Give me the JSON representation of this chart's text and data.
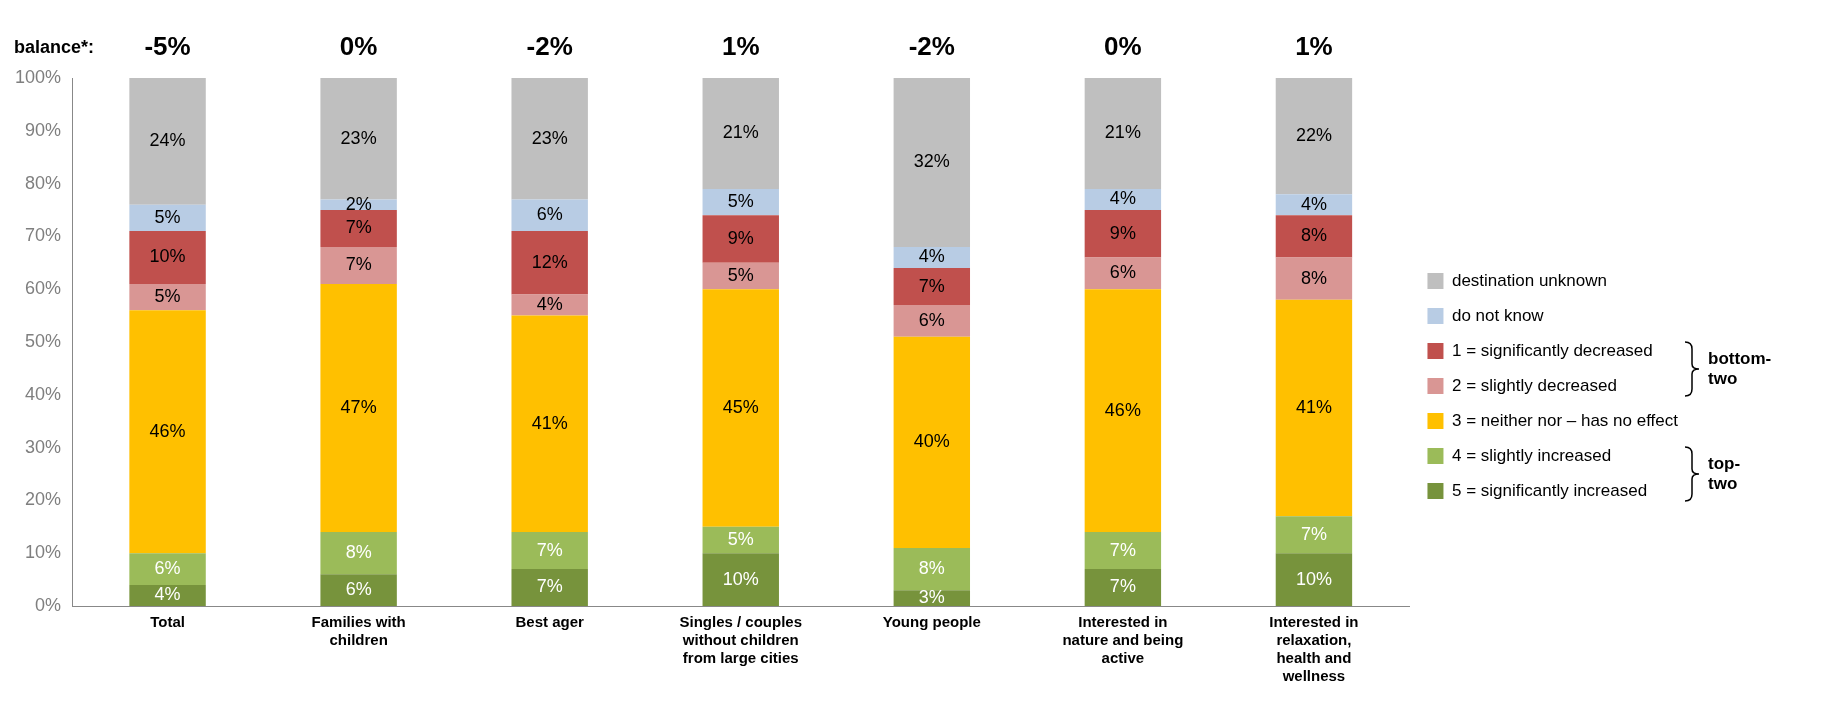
{
  "chart_data": {
    "type": "bar",
    "stacked": true,
    "legend": "right",
    "grid": false,
    "categories": [
      "Total",
      "Families with children",
      "Best ager",
      "Singles / couples without children from large cities",
      "Young people",
      "Interested in nature and being active",
      "Interested in relaxation, health and wellness"
    ],
    "series": [
      {
        "name": "5 = significantly increased",
        "color": "#77933c",
        "values": [
          4,
          6,
          7,
          10,
          3,
          7,
          10
        ],
        "value_labels": [
          "4%",
          "6%",
          "7%",
          "10%",
          "3%",
          "7%",
          "10%"
        ]
      },
      {
        "name": "4 = slightly increased",
        "color": "#9bbb59",
        "values": [
          6,
          8,
          7,
          5,
          8,
          7,
          7
        ],
        "value_labels": [
          "6%",
          "8%",
          "7%",
          "5%",
          "8%",
          "7%",
          "7%"
        ]
      },
      {
        "name": "3 = neither nor – has no effect",
        "color": "#ffc000",
        "values": [
          46,
          47,
          41,
          45,
          40,
          46,
          41
        ],
        "value_labels": [
          "46%",
          "47%",
          "41%",
          "45%",
          "40%",
          "46%",
          "41%"
        ]
      },
      {
        "name": "2 = slightly decreased",
        "color": "#d99694",
        "values": [
          5,
          7,
          4,
          5,
          6,
          6,
          8
        ],
        "value_labels": [
          "5%",
          "7%",
          "4%",
          "5%",
          "6%",
          "6%",
          "8%"
        ]
      },
      {
        "name": "1 = significantly decreased",
        "color": "#c0504d",
        "values": [
          10,
          7,
          12,
          9,
          7,
          9,
          8
        ],
        "value_labels": [
          "10%",
          "7%",
          "12%",
          "9%",
          "7%",
          "9%",
          "8%"
        ]
      },
      {
        "name": "do not know",
        "color": "#b8cce4",
        "values": [
          5,
          2,
          6,
          5,
          4,
          4,
          4
        ],
        "value_labels": [
          "5%",
          "2%",
          "6%",
          "5%",
          "4%",
          "4%",
          "4%"
        ]
      },
      {
        "name": "destination unknown",
        "color": "#bfbfbf",
        "values": [
          24,
          23,
          23,
          21,
          32,
          21,
          22
        ],
        "value_labels": [
          "24%",
          "23%",
          "23%",
          "21%",
          "32%",
          "21%",
          "22%"
        ]
      }
    ],
    "ylim": [
      0,
      100
    ],
    "yticks": [
      {
        "value": 0,
        "label": "0%"
      },
      {
        "value": 10,
        "label": "10%"
      },
      {
        "value": 20,
        "label": "20%"
      },
      {
        "value": 30,
        "label": "30%"
      },
      {
        "value": 40,
        "label": "40%"
      },
      {
        "value": 50,
        "label": "50%"
      },
      {
        "value": 60,
        "label": "60%"
      },
      {
        "value": 70,
        "label": "70%"
      },
      {
        "value": 80,
        "label": "80%"
      },
      {
        "value": 90,
        "label": "90%"
      },
      {
        "value": 100,
        "label": "100%"
      }
    ],
    "annotations": [
      "balance*:",
      "bottom-two",
      "top-two",
      "-5%",
      "0%",
      "-2%",
      "1%",
      "-2%",
      "0%",
      "1%"
    ]
  }
}
